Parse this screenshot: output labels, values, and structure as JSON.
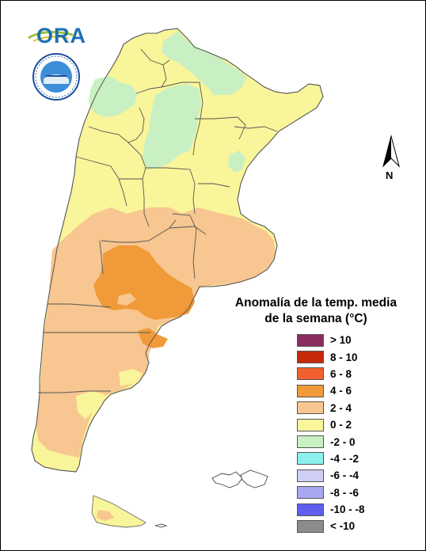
{
  "logos": {
    "ora_text": "ORA",
    "smn_ring_text": "SERVICIO METEOROLOGICO NACIONAL · ARGENTINA"
  },
  "north_arrow": {
    "label": "N"
  },
  "legend": {
    "title_line1": "Anomalía de la temp. media",
    "title_line2": "de la semana (°C)",
    "items": [
      {
        "label": "> 10",
        "color": "#8b2c5e"
      },
      {
        "label": "8 - 10",
        "color": "#c62a0b"
      },
      {
        "label": "6 - 8",
        "color": "#f2602f"
      },
      {
        "label": "4 - 6",
        "color": "#f09a3a"
      },
      {
        "label": "2 - 4",
        "color": "#f8c690"
      },
      {
        "label": "0 - 2",
        "color": "#f9f59a"
      },
      {
        "label": "-2 - 0",
        "color": "#c9f0c2"
      },
      {
        "label": "-4 - -2",
        "color": "#8cf0ee"
      },
      {
        "label": "-6 - -4",
        "color": "#cfcff5"
      },
      {
        "label": "-8 - -6",
        "color": "#a7a7f2"
      },
      {
        "label": "-10 - -8",
        "color": "#5e5ef0"
      },
      {
        "label": "< -10",
        "color": "#8c8c8c"
      }
    ]
  }
}
